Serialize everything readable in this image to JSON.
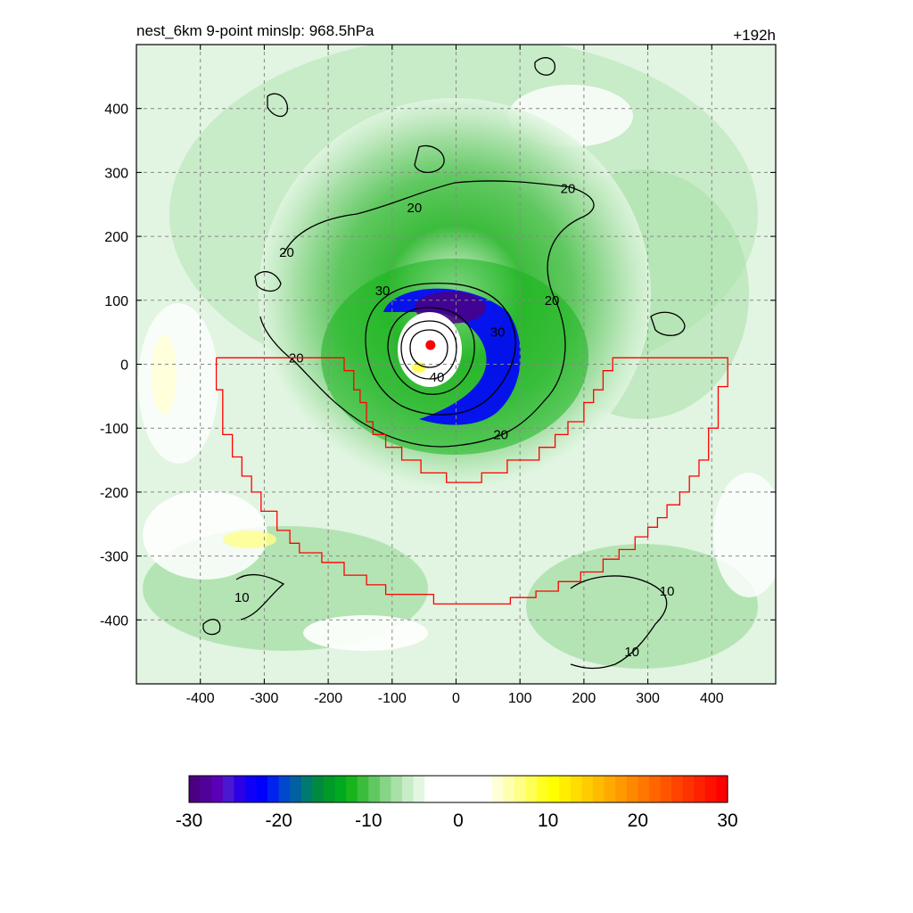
{
  "chart_data": {
    "type": "heatmap",
    "title_left": "nest_6km  9-point minslp: 968.5hPa",
    "title_right": "+192h",
    "xlabel": "",
    "ylabel": "",
    "xlim": [
      -500,
      500
    ],
    "ylim": [
      -500,
      500
    ],
    "x_ticks": [
      -400,
      -300,
      -200,
      -100,
      0,
      100,
      200,
      300,
      400
    ],
    "y_ticks": [
      -400,
      -300,
      -200,
      -100,
      0,
      100,
      200,
      300,
      400
    ],
    "x_tick_labels": [
      "-400",
      "-300",
      "-200",
      "-100",
      "0",
      "100",
      "200",
      "300",
      "400"
    ],
    "y_tick_labels": [
      "-400",
      "-300",
      "-200",
      "-100",
      "0",
      "100",
      "200",
      "300",
      "400"
    ],
    "grid": true,
    "field": {
      "center": [
        -40,
        30
      ],
      "colormap_range": [
        -30,
        30
      ]
    },
    "contours": {
      "color": "#000000",
      "labels": [
        {
          "text": "20",
          "x": 175,
          "y": 275
        },
        {
          "text": "20",
          "x": -65,
          "y": 245
        },
        {
          "text": "20",
          "x": -265,
          "y": 175
        },
        {
          "text": "20",
          "x": 150,
          "y": 100
        },
        {
          "text": "20",
          "x": -250,
          "y": 10
        },
        {
          "text": "20",
          "x": 70,
          "y": -110
        },
        {
          "text": "30",
          "x": -115,
          "y": 115
        },
        {
          "text": "30",
          "x": 65,
          "y": 50
        },
        {
          "text": "40",
          "x": -30,
          "y": -20
        },
        {
          "text": "10",
          "x": 330,
          "y": -355
        },
        {
          "text": "10",
          "x": 275,
          "y": -450
        },
        {
          "text": "10",
          "x": -335,
          "y": -365
        }
      ]
    },
    "region_outline": {
      "color": "#ff0000",
      "points": [
        [
          -375,
          10
        ],
        [
          -175,
          10
        ],
        [
          -175,
          -10
        ],
        [
          -160,
          -10
        ],
        [
          -160,
          -40
        ],
        [
          -150,
          -40
        ],
        [
          -150,
          -60
        ],
        [
          -140,
          -60
        ],
        [
          -140,
          -90
        ],
        [
          -130,
          -90
        ],
        [
          -130,
          -110
        ],
        [
          -110,
          -110
        ],
        [
          -110,
          -130
        ],
        [
          -85,
          -130
        ],
        [
          -85,
          -150
        ],
        [
          -55,
          -150
        ],
        [
          -55,
          -170
        ],
        [
          -15,
          -170
        ],
        [
          -15,
          -185
        ],
        [
          40,
          -185
        ],
        [
          40,
          -170
        ],
        [
          80,
          -170
        ],
        [
          80,
          -150
        ],
        [
          130,
          -150
        ],
        [
          130,
          -130
        ],
        [
          155,
          -130
        ],
        [
          155,
          -110
        ],
        [
          175,
          -110
        ],
        [
          175,
          -90
        ],
        [
          200,
          -90
        ],
        [
          200,
          -60
        ],
        [
          215,
          -60
        ],
        [
          215,
          -40
        ],
        [
          230,
          -40
        ],
        [
          230,
          -10
        ],
        [
          245,
          -10
        ],
        [
          245,
          10
        ],
        [
          425,
          10
        ],
        [
          425,
          -35
        ],
        [
          410,
          -35
        ],
        [
          410,
          -100
        ],
        [
          395,
          -100
        ],
        [
          395,
          -150
        ],
        [
          380,
          -150
        ],
        [
          380,
          -175
        ],
        [
          365,
          -175
        ],
        [
          365,
          -200
        ],
        [
          350,
          -200
        ],
        [
          350,
          -220
        ],
        [
          330,
          -220
        ],
        [
          330,
          -240
        ],
        [
          315,
          -240
        ],
        [
          315,
          -255
        ],
        [
          300,
          -255
        ],
        [
          300,
          -270
        ],
        [
          280,
          -270
        ],
        [
          280,
          -290
        ],
        [
          255,
          -290
        ],
        [
          255,
          -305
        ],
        [
          230,
          -305
        ],
        [
          230,
          -325
        ],
        [
          195,
          -325
        ],
        [
          195,
          -340
        ],
        [
          160,
          -340
        ],
        [
          160,
          -355
        ],
        [
          125,
          -355
        ],
        [
          125,
          -365
        ],
        [
          85,
          -365
        ],
        [
          85,
          -375
        ],
        [
          -35,
          -375
        ],
        [
          -35,
          -360
        ],
        [
          -110,
          -360
        ],
        [
          -110,
          -345
        ],
        [
          -140,
          -345
        ],
        [
          -140,
          -330
        ],
        [
          -175,
          -330
        ],
        [
          -175,
          -310
        ],
        [
          -210,
          -310
        ],
        [
          -210,
          -295
        ],
        [
          -245,
          -295
        ],
        [
          -245,
          -280
        ],
        [
          -260,
          -280
        ],
        [
          -260,
          -260
        ],
        [
          -280,
          -260
        ],
        [
          -280,
          -230
        ],
        [
          -305,
          -230
        ],
        [
          -305,
          -200
        ],
        [
          -320,
          -200
        ],
        [
          -320,
          -175
        ],
        [
          -335,
          -175
        ],
        [
          -335,
          -145
        ],
        [
          -350,
          -145
        ],
        [
          -350,
          -110
        ],
        [
          -365,
          -110
        ],
        [
          -365,
          -40
        ],
        [
          -375,
          -40
        ],
        [
          -375,
          10
        ]
      ]
    },
    "center_marker": {
      "x": -40,
      "y": 30,
      "color": "#ff0000"
    },
    "colorbar": {
      "ticks": [
        -30,
        -20,
        -10,
        0,
        10,
        20,
        30
      ],
      "tick_labels": [
        "-30",
        "-20",
        "-10",
        "0",
        "10",
        "20",
        "30"
      ],
      "colors": [
        "#4b0082",
        "#52009a",
        "#5b00b6",
        "#4a18d0",
        "#2b00e6",
        "#1100f8",
        "#0000ff",
        "#0022ee",
        "#0048cc",
        "#0060a0",
        "#007a70",
        "#008a40",
        "#009a28",
        "#00aa20",
        "#17b41c",
        "#3cbc3c",
        "#60c860",
        "#86d486",
        "#a8e0a8",
        "#c8ecc8",
        "#e2f6e2",
        "#ffffff",
        "#ffffff",
        "#ffffff",
        "#ffffff",
        "#ffffff",
        "#ffffff",
        "#ffffd8",
        "#ffffb0",
        "#ffff88",
        "#ffff55",
        "#ffff22",
        "#ffff00",
        "#ffee00",
        "#ffdd00",
        "#ffcc00",
        "#ffbb00",
        "#ffaa00",
        "#ff9900",
        "#ff8800",
        "#ff7700",
        "#ff6600",
        "#ff5500",
        "#ff4400",
        "#ff3300",
        "#ff2200",
        "#ff1100",
        "#ff0000"
      ]
    }
  }
}
